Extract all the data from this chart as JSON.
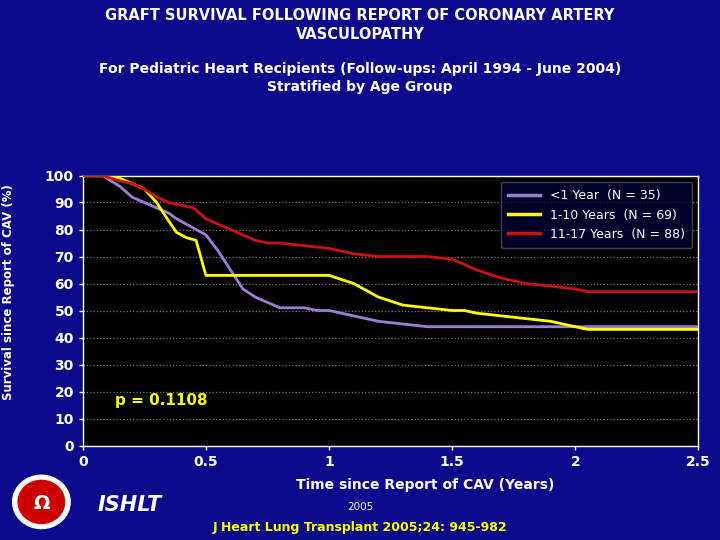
{
  "title1": "GRAFT SURVIVAL FOLLOWING REPORT OF CORONARY ARTERY\nVASCULOPATHY",
  "subtitle": "For Pediatric Heart Recipients (Follow-ups: April 1994 - June 2004)\nStratified by Age Group",
  "xlabel": "Time since Report of CAV (Years)",
  "ylabel": "Survival since Report of CAV (%)",
  "pvalue": "p = 0.1108",
  "footer": "J Heart Lung Transplant 2005;24: 945-982",
  "ishlt_text": "ISHLT",
  "year_text": "2005",
  "bg_color": "#0A0A8B",
  "plot_bg_color": "#000000",
  "title_color": "#FFFFFF",
  "subtitle_color": "#FFFFFF",
  "axis_color": "#FFFFFF",
  "grid_color": "#AAAAAA",
  "pvalue_color": "#FFFF00",
  "footer_color": "#FFFF00",
  "xlim": [
    0,
    2.5
  ],
  "ylim": [
    0,
    100
  ],
  "xticks": [
    0,
    0.5,
    1.0,
    1.5,
    2.0,
    2.5
  ],
  "xtick_labels": [
    "0",
    "0.5",
    "1",
    "1.5",
    "2",
    "2.5"
  ],
  "yticks": [
    0,
    10,
    20,
    30,
    40,
    50,
    60,
    70,
    80,
    90,
    100
  ],
  "series": [
    {
      "label": "<1 Year  (N = 35)",
      "color": "#9B7FD4",
      "x": [
        0,
        0.08,
        0.15,
        0.2,
        0.25,
        0.3,
        0.35,
        0.38,
        0.42,
        0.46,
        0.5,
        0.55,
        0.6,
        0.65,
        0.7,
        0.75,
        0.8,
        0.85,
        0.9,
        0.95,
        1.0,
        1.05,
        1.1,
        1.2,
        1.3,
        1.4,
        1.5,
        1.6,
        1.7,
        1.8,
        1.9,
        2.0,
        2.1,
        2.2,
        2.3,
        2.4,
        2.5
      ],
      "y": [
        100,
        100,
        96,
        92,
        90,
        88,
        86,
        84,
        82,
        80,
        78,
        72,
        65,
        58,
        55,
        53,
        51,
        51,
        51,
        50,
        50,
        49,
        48,
        46,
        45,
        44,
        44,
        44,
        44,
        44,
        44,
        44,
        44,
        44,
        44,
        44,
        44
      ]
    },
    {
      "label": "1-10 Years  (N = 69)",
      "color": "#FFFF00",
      "x": [
        0,
        0.08,
        0.15,
        0.2,
        0.25,
        0.3,
        0.35,
        0.38,
        0.42,
        0.46,
        0.5,
        0.55,
        0.6,
        0.65,
        0.7,
        0.8,
        0.9,
        1.0,
        1.1,
        1.2,
        1.3,
        1.4,
        1.5,
        1.55,
        1.6,
        1.7,
        1.8,
        1.9,
        2.0,
        2.05,
        2.1,
        2.2,
        2.3,
        2.4,
        2.5
      ],
      "y": [
        100,
        100,
        99,
        97,
        95,
        90,
        83,
        79,
        77,
        76,
        63,
        63,
        63,
        63,
        63,
        63,
        63,
        63,
        60,
        55,
        52,
        51,
        50,
        50,
        49,
        48,
        47,
        46,
        44,
        43,
        43,
        43,
        43,
        43,
        43
      ]
    },
    {
      "label": "11-17 Years  (N = 88)",
      "color": "#CC1111",
      "x": [
        0,
        0.08,
        0.15,
        0.2,
        0.25,
        0.3,
        0.35,
        0.4,
        0.45,
        0.5,
        0.55,
        0.6,
        0.65,
        0.7,
        0.75,
        0.8,
        0.9,
        1.0,
        1.05,
        1.1,
        1.2,
        1.3,
        1.4,
        1.5,
        1.6,
        1.7,
        1.8,
        1.9,
        2.0,
        2.05,
        2.1,
        2.2,
        2.3,
        2.4,
        2.5
      ],
      "y": [
        100,
        100,
        98,
        97,
        95,
        92,
        90,
        89,
        88,
        84,
        82,
        80,
        78,
        76,
        75,
        75,
        74,
        73,
        72,
        71,
        70,
        70,
        70,
        69,
        65,
        62,
        60,
        59,
        58,
        57,
        57,
        57,
        57,
        57,
        57
      ]
    }
  ]
}
